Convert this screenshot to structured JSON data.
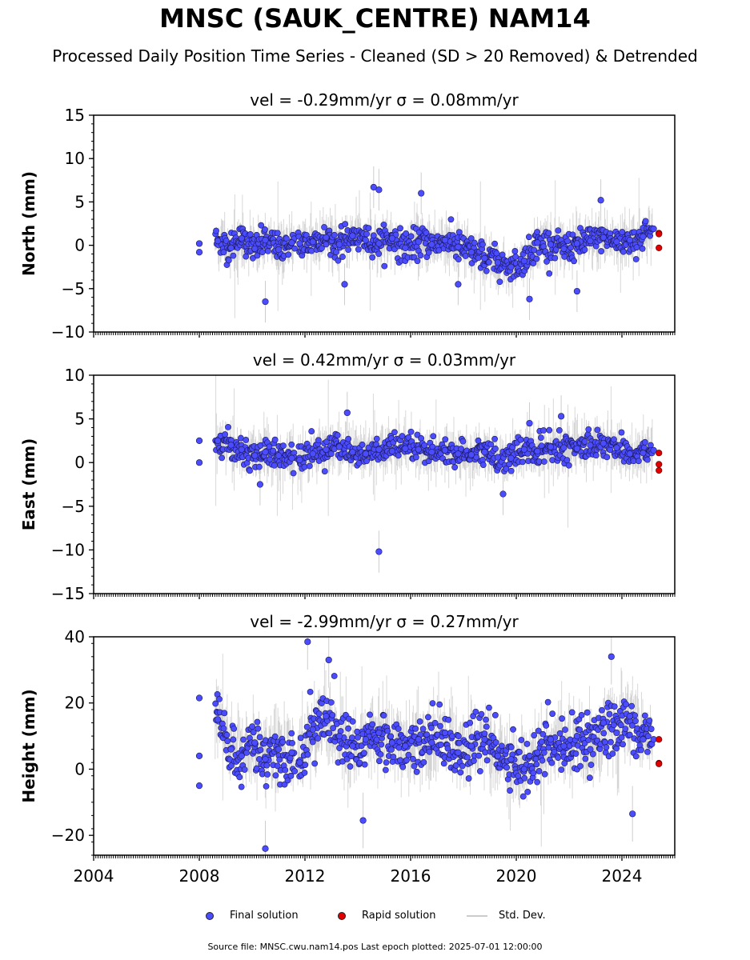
{
  "header": {
    "title": "MNSC (SAUK_CENTRE) NAM14",
    "subtitle": "Processed Daily Position Time Series - Cleaned (SD > 20 Removed) & Detrended"
  },
  "legend": {
    "final_label": "Final solution",
    "rapid_label": "Rapid solution",
    "stddev_label": "Std. Dev."
  },
  "footer": {
    "text": "Source file: MNSC.cwu.nam14.pos  Last epoch plotted: 2025-07-01 12:00:00"
  },
  "colors": {
    "final": "#4c4cff",
    "rapid": "#e00000",
    "stddev": "#b8b8b8",
    "axis": "#000000"
  },
  "chart_data": [
    {
      "type": "scatter",
      "title": "vel = -0.29mm/yr   σ = 0.08mm/yr",
      "ylabel": "North (mm)",
      "xlim": [
        2004.0,
        2026.0
      ],
      "ylim": [
        -10,
        15
      ],
      "yticks": [
        -10,
        -5,
        0,
        5,
        10,
        15
      ],
      "ytick_labels": [
        "−10",
        "−5",
        "0",
        "5",
        "10",
        "15"
      ],
      "xticks": [
        2004,
        2008,
        2012,
        2016,
        2020,
        2024
      ],
      "xtick_labels": [
        "2004",
        "2008",
        "2012",
        "2016",
        "2020",
        "2024"
      ],
      "show_xtick_labels": false,
      "series": [
        {
          "name": "Final solution",
          "x": [
            2008.0,
            2008.0,
            2008.7,
            2009.2,
            2009.6,
            2010.1,
            2010.5,
            2011.0,
            2011.5,
            2011.8,
            2012.3,
            2012.8,
            2013.3,
            2013.8,
            2014.3,
            2014.8,
            2015.3,
            2015.8,
            2016.3,
            2016.8,
            2017.3,
            2017.8,
            2018.3,
            2018.8,
            2019.3,
            2019.8,
            2020.3,
            2020.8,
            2021.3,
            2021.8,
            2022.3,
            2022.8,
            2023.3,
            2023.8,
            2024.3,
            2024.8,
            2025.2
          ],
          "y": [
            0.2,
            -0.8,
            0.5,
            -0.3,
            0.8,
            -0.4,
            0.6,
            -0.5,
            0.3,
            0.2,
            0.4,
            0.9,
            0.1,
            1.1,
            0.6,
            0.2,
            0.8,
            -0.3,
            0.4,
            0.1,
            0.6,
            -0.2,
            -0.8,
            -1.5,
            -2.0,
            -2.5,
            -1.8,
            0.3,
            0.1,
            -0.4,
            0.2,
            0.5,
            0.9,
            0.4,
            0.6,
            1.0,
            1.9
          ]
        },
        {
          "name": "Final solution (outliers)",
          "x": [
            2010.5,
            2014.6,
            2014.8,
            2016.4,
            2013.5,
            2020.5,
            2022.3,
            2023.2,
            2017.8
          ],
          "y": [
            -6.5,
            6.7,
            6.4,
            6.0,
            -4.5,
            -6.2,
            -5.3,
            5.2,
            -4.5
          ]
        },
        {
          "name": "Rapid solution",
          "x": [
            2025.4,
            2025.4,
            2025.4
          ],
          "y": [
            1.4,
            1.3,
            -0.3
          ]
        }
      ],
      "noise": {
        "final_spread": 1.4,
        "stddev_typical": 2.0,
        "stddev_max": 9.0
      }
    },
    {
      "type": "scatter",
      "title": "vel = 0.42mm/yr   σ = 0.03mm/yr",
      "ylabel": "East (mm)",
      "xlim": [
        2004.0,
        2026.0
      ],
      "ylim": [
        -15,
        10
      ],
      "yticks": [
        -15,
        -10,
        -5,
        0,
        5,
        10
      ],
      "ytick_labels": [
        "−15",
        "−10",
        "−5",
        "0",
        "5",
        "10"
      ],
      "xticks": [
        2004,
        2008,
        2012,
        2016,
        2020,
        2024
      ],
      "xtick_labels": [
        "2004",
        "2008",
        "2012",
        "2016",
        "2020",
        "2024"
      ],
      "show_xtick_labels": false,
      "series": [
        {
          "name": "Final solution",
          "x": [
            2008.0,
            2008.0,
            2008.7,
            2009.2,
            2009.6,
            2010.1,
            2010.5,
            2011.0,
            2011.5,
            2011.8,
            2012.3,
            2012.8,
            2013.3,
            2013.8,
            2014.3,
            2014.8,
            2015.3,
            2015.8,
            2016.3,
            2016.8,
            2017.3,
            2017.8,
            2018.3,
            2018.8,
            2019.3,
            2019.8,
            2020.3,
            2020.8,
            2021.3,
            2021.8,
            2022.3,
            2022.8,
            2023.3,
            2023.8,
            2024.3,
            2024.8,
            2025.2
          ],
          "y": [
            2.5,
            0.0,
            2.5,
            2.0,
            1.5,
            0.8,
            1.2,
            0.8,
            0.5,
            0.3,
            1.0,
            1.5,
            1.8,
            1.2,
            1.0,
            1.5,
            1.3,
            1.6,
            1.5,
            1.2,
            1.4,
            1.0,
            0.9,
            1.2,
            0.6,
            0.5,
            1.5,
            1.3,
            1.8,
            1.7,
            1.6,
            2.0,
            2.2,
            1.7,
            1.0,
            1.1,
            1.4
          ]
        },
        {
          "name": "Final solution (outliers)",
          "x": [
            2014.8,
            2013.6,
            2019.5,
            2020.5,
            2021.7,
            2010.3
          ],
          "y": [
            -10.2,
            5.7,
            -3.6,
            4.5,
            5.3,
            -2.5
          ]
        },
        {
          "name": "Rapid solution",
          "x": [
            2025.4,
            2025.4,
            2025.4
          ],
          "y": [
            1.1,
            -0.2,
            -0.9
          ]
        }
      ],
      "noise": {
        "final_spread": 1.3,
        "stddev_typical": 2.0,
        "stddev_max": 9.0
      }
    },
    {
      "type": "scatter",
      "title": "vel = -2.99mm/yr   σ = 0.27mm/yr",
      "ylabel": "Height (mm)",
      "xlim": [
        2004.0,
        2026.0
      ],
      "ylim": [
        -26,
        40
      ],
      "yticks": [
        -20,
        0,
        20,
        40
      ],
      "ytick_labels": [
        "−20",
        "0",
        "20",
        "40"
      ],
      "xticks": [
        2004,
        2008,
        2012,
        2016,
        2020,
        2024
      ],
      "xtick_labels": [
        "2004",
        "2008",
        "2012",
        "2016",
        "2020",
        "2024"
      ],
      "show_xtick_labels": true,
      "series": [
        {
          "name": "Final solution",
          "x": [
            2008.0,
            2008.0,
            2008.0,
            2008.7,
            2009.2,
            2009.6,
            2010.1,
            2010.5,
            2011.0,
            2011.5,
            2011.8,
            2012.3,
            2012.8,
            2013.3,
            2013.8,
            2014.3,
            2014.8,
            2015.3,
            2015.8,
            2016.3,
            2016.8,
            2017.3,
            2017.8,
            2018.3,
            2018.8,
            2019.3,
            2019.8,
            2020.3,
            2020.8,
            2021.3,
            2021.8,
            2022.3,
            2022.8,
            2023.3,
            2023.8,
            2024.3,
            2024.8,
            2025.2
          ],
          "y": [
            21.5,
            4.0,
            -5.0,
            15.0,
            6.0,
            4.0,
            8.0,
            3.0,
            6.0,
            5.0,
            2.0,
            12.0,
            16.0,
            10.0,
            7.0,
            9.0,
            11.0,
            8.0,
            7.0,
            9.0,
            8.0,
            11.0,
            5.0,
            7.0,
            9.0,
            4.0,
            3.0,
            0.0,
            5.0,
            9.0,
            7.0,
            10.0,
            6.0,
            14.0,
            11.0,
            16.0,
            9.0,
            9.0
          ]
        },
        {
          "name": "Final solution (outliers)",
          "x": [
            2010.5,
            2012.1,
            2012.9,
            2014.2,
            2023.6,
            2024.4
          ],
          "y": [
            -24.0,
            38.5,
            33.0,
            -15.5,
            34.0,
            -13.5
          ]
        },
        {
          "name": "Rapid solution",
          "x": [
            2025.4,
            2025.4,
            2025.4
          ],
          "y": [
            9.0,
            1.8,
            1.6
          ]
        }
      ],
      "noise": {
        "final_spread": 7.0,
        "stddev_typical": 7.0,
        "stddev_max": 25.0
      }
    }
  ]
}
